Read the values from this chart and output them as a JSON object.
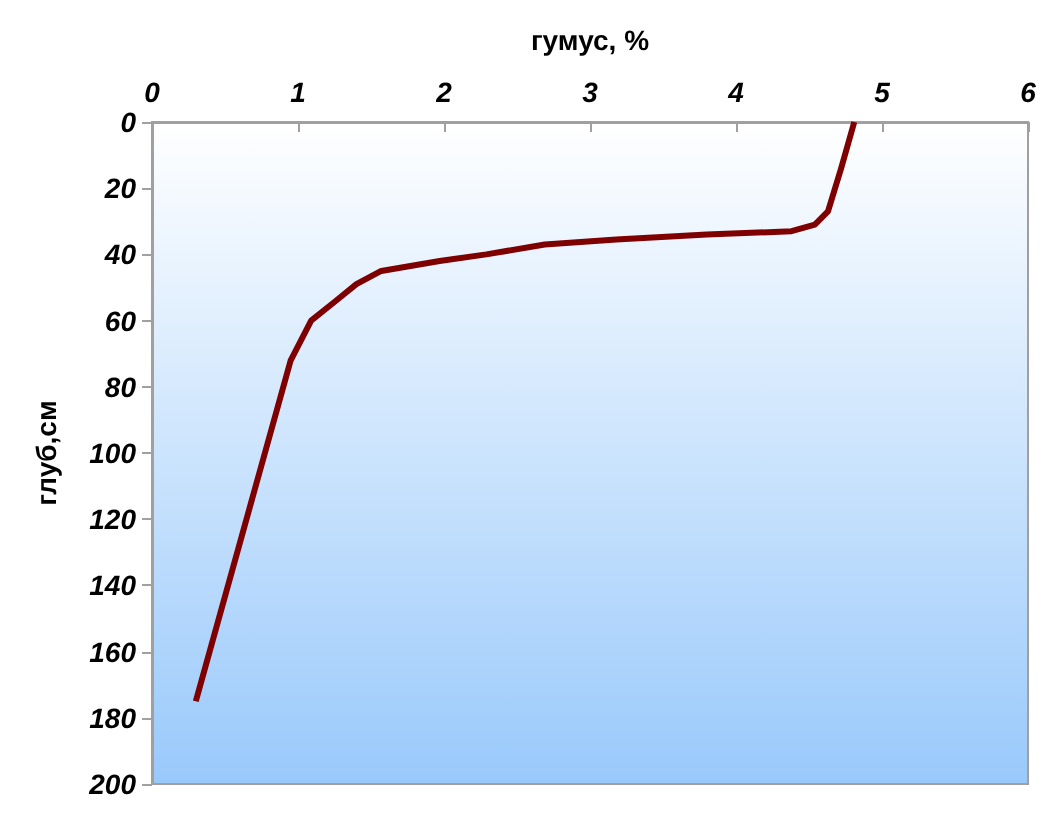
{
  "chart_data": {
    "type": "line",
    "xlabel": "гумус, %",
    "ylabel": "глуб,см",
    "xlim": [
      0,
      6
    ],
    "xticks": [
      0,
      1,
      2,
      3,
      4,
      5,
      6
    ],
    "ylim": [
      200,
      0
    ],
    "yticks": [
      0,
      20,
      40,
      60,
      80,
      100,
      120,
      140,
      160,
      180,
      200
    ],
    "grid": false,
    "marker": "none",
    "line_style": "solid",
    "series": [
      {
        "color": "#7f0000",
        "x": [
          0.3,
          0.95,
          1.09,
          1.26,
          1.4,
          1.57,
          1.97,
          2.29,
          2.69,
          3.18,
          3.8,
          4.38,
          4.54,
          4.63,
          4.72,
          4.81
        ],
        "values": [
          175,
          72,
          60,
          54,
          49,
          45,
          42,
          40,
          37,
          35.5,
          34,
          33,
          31,
          27,
          14,
          0
        ]
      }
    ]
  }
}
